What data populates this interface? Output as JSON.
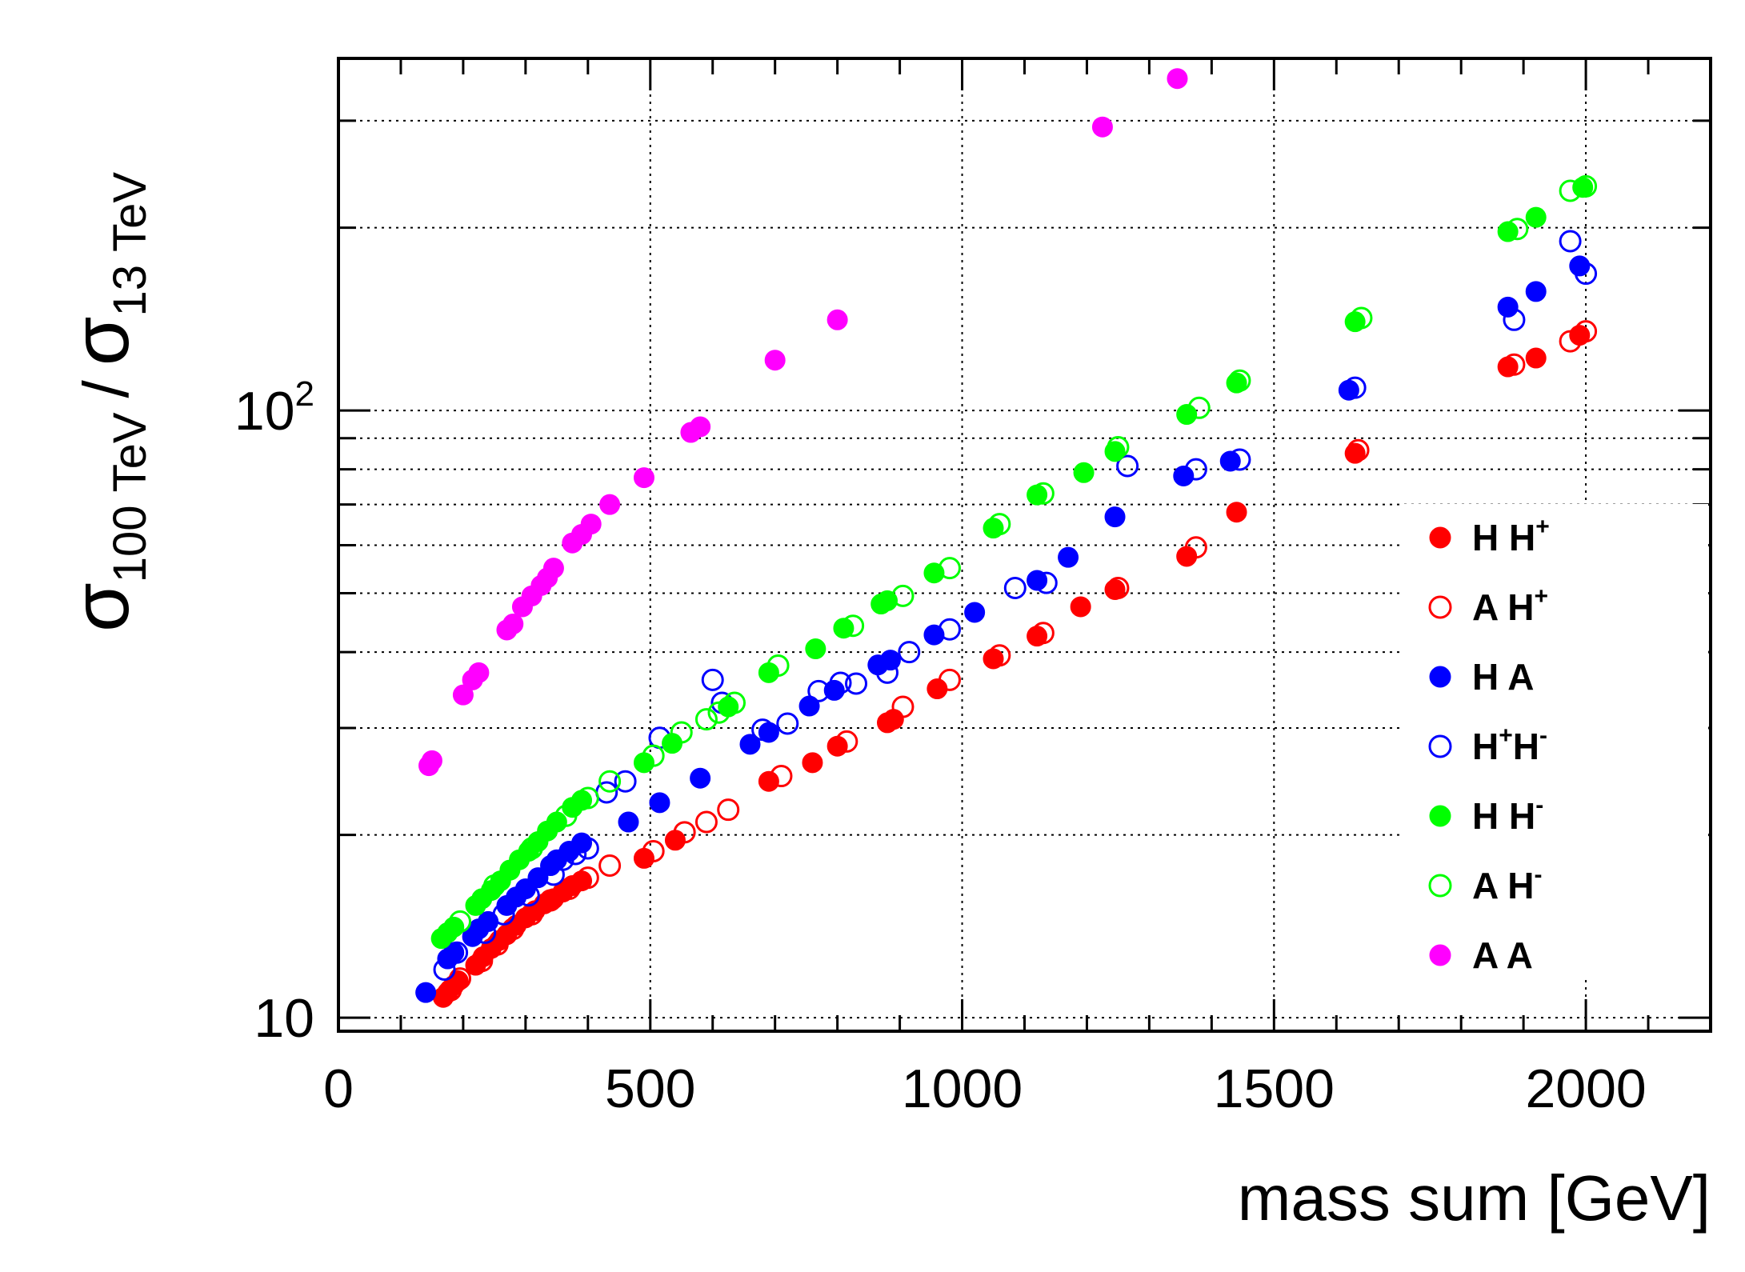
{
  "chart_data": {
    "type": "scatter",
    "title": "",
    "xlabel": "mass sum [GeV]",
    "ylabel": {
      "sigma": "σ",
      "sub_num": "100 TeV",
      "slash": "/",
      "sub_den": "13 TeV"
    },
    "xlim": [
      0,
      2200
    ],
    "ylim": [
      9.5,
      380
    ],
    "yscale": "log",
    "grid": true,
    "x_ticks": [
      {
        "value": 0,
        "label": "0"
      },
      {
        "value": 500,
        "label": "500"
      },
      {
        "value": 1000,
        "label": "1000"
      },
      {
        "value": 1500,
        "label": "1500"
      },
      {
        "value": 2000,
        "label": "2000"
      }
    ],
    "y_ticks": [
      {
        "value": 10,
        "label": "10",
        "exponent": ""
      },
      {
        "value": 100,
        "label": "10",
        "exponent": "2"
      }
    ],
    "legend_position": "right",
    "series": [
      {
        "name": "H H+",
        "label_main": "H H",
        "label_sup": "+",
        "color": "#ff0000",
        "filled": true,
        "points": [
          [
            168,
            10.8
          ],
          [
            175,
            11
          ],
          [
            185,
            11.3
          ],
          [
            192,
            11.5
          ],
          [
            220,
            12.2
          ],
          [
            232,
            12.6
          ],
          [
            245,
            13
          ],
          [
            258,
            13.4
          ],
          [
            270,
            13.7
          ],
          [
            285,
            14.2
          ],
          [
            300,
            14.6
          ],
          [
            315,
            15
          ],
          [
            330,
            15.4
          ],
          [
            345,
            15.7
          ],
          [
            360,
            16.1
          ],
          [
            375,
            16.5
          ],
          [
            390,
            16.8
          ],
          [
            490,
            18.3
          ],
          [
            540,
            19.6
          ],
          [
            690,
            24.5
          ],
          [
            760,
            26.3
          ],
          [
            800,
            28
          ],
          [
            880,
            30.6
          ],
          [
            890,
            31
          ],
          [
            960,
            34.8
          ],
          [
            1050,
            39
          ],
          [
            1120,
            42.5
          ],
          [
            1190,
            47.5
          ],
          [
            1245,
            50.7
          ],
          [
            1360,
            57.5
          ],
          [
            1440,
            68
          ],
          [
            1630,
            85
          ],
          [
            1875,
            118
          ],
          [
            1920,
            122
          ],
          [
            1990,
            133
          ]
        ]
      },
      {
        "name": "A H+",
        "label_main": "A H",
        "label_sup": "+",
        "color": "#ff0000",
        "filled": false,
        "points": [
          [
            180,
            11.1
          ],
          [
            195,
            11.6
          ],
          [
            230,
            12.4
          ],
          [
            255,
            13.2
          ],
          [
            280,
            14
          ],
          [
            310,
            14.8
          ],
          [
            340,
            15.6
          ],
          [
            370,
            16.3
          ],
          [
            400,
            17
          ],
          [
            435,
            17.8
          ],
          [
            505,
            18.8
          ],
          [
            555,
            20.2
          ],
          [
            590,
            21
          ],
          [
            625,
            22
          ],
          [
            710,
            25
          ],
          [
            815,
            28.5
          ],
          [
            905,
            32.5
          ],
          [
            980,
            36
          ],
          [
            1060,
            39.5
          ],
          [
            1130,
            43
          ],
          [
            1250,
            51
          ],
          [
            1375,
            59.5
          ],
          [
            1635,
            86
          ],
          [
            1885,
            119
          ],
          [
            1975,
            130
          ],
          [
            2000,
            135
          ]
        ]
      },
      {
        "name": "H A",
        "label_main": "H A",
        "label_sup": "",
        "color": "#0000ff",
        "filled": true,
        "points": [
          [
            140,
            11
          ],
          [
            175,
            12.5
          ],
          [
            185,
            12.8
          ],
          [
            215,
            13.6
          ],
          [
            225,
            14
          ],
          [
            240,
            14.4
          ],
          [
            270,
            15.3
          ],
          [
            285,
            15.8
          ],
          [
            300,
            16.3
          ],
          [
            320,
            17
          ],
          [
            340,
            17.8
          ],
          [
            350,
            18.2
          ],
          [
            370,
            18.8
          ],
          [
            390,
            19.4
          ],
          [
            465,
            21
          ],
          [
            515,
            22.6
          ],
          [
            580,
            24.8
          ],
          [
            660,
            28.2
          ],
          [
            690,
            29.5
          ],
          [
            755,
            32.6
          ],
          [
            795,
            34.6
          ],
          [
            865,
            38.1
          ],
          [
            885,
            38.8
          ],
          [
            955,
            42.7
          ],
          [
            1020,
            46.5
          ],
          [
            1120,
            52.5
          ],
          [
            1170,
            57.3
          ],
          [
            1245,
            66.8
          ],
          [
            1355,
            78
          ],
          [
            1430,
            82.5
          ],
          [
            1620,
            108
          ],
          [
            1875,
            148
          ],
          [
            1920,
            157
          ],
          [
            1990,
            173
          ]
        ]
      },
      {
        "name": "H+H-",
        "label_main": "H",
        "label_sup": "+",
        "label_main2": "H",
        "label_sup2": "-",
        "color": "#0000ff",
        "filled": false,
        "points": [
          [
            170,
            12
          ],
          [
            190,
            12.8
          ],
          [
            235,
            13.8
          ],
          [
            265,
            14.8
          ],
          [
            305,
            15.9
          ],
          [
            345,
            17.2
          ],
          [
            360,
            18.2
          ],
          [
            380,
            18.6
          ],
          [
            400,
            19
          ],
          [
            430,
            23.5
          ],
          [
            460,
            24.5
          ],
          [
            515,
            28.9
          ],
          [
            600,
            36
          ],
          [
            615,
            33
          ],
          [
            680,
            29.8
          ],
          [
            720,
            30.5
          ],
          [
            770,
            34.5
          ],
          [
            805,
            35.6
          ],
          [
            830,
            35.5
          ],
          [
            880,
            37
          ],
          [
            915,
            40
          ],
          [
            980,
            43.6
          ],
          [
            1085,
            51
          ],
          [
            1135,
            52
          ],
          [
            1265,
            81
          ],
          [
            1375,
            80
          ],
          [
            1445,
            83
          ],
          [
            1630,
            109
          ],
          [
            1885,
            141
          ],
          [
            1975,
            190
          ],
          [
            2000,
            168
          ]
        ]
      },
      {
        "name": "H H-",
        "label_main": "H H",
        "label_sup": "-",
        "color": "#00ff00",
        "filled": true,
        "points": [
          [
            165,
            13.5
          ],
          [
            175,
            13.8
          ],
          [
            185,
            14.1
          ],
          [
            220,
            15.3
          ],
          [
            230,
            15.7
          ],
          [
            245,
            16.2
          ],
          [
            260,
            16.8
          ],
          [
            275,
            17.5
          ],
          [
            290,
            18.2
          ],
          [
            305,
            18.8
          ],
          [
            320,
            19.5
          ],
          [
            335,
            20.3
          ],
          [
            350,
            21
          ],
          [
            375,
            22.2
          ],
          [
            390,
            22.8
          ],
          [
            490,
            26.3
          ],
          [
            535,
            28.3
          ],
          [
            625,
            32.5
          ],
          [
            690,
            37
          ],
          [
            765,
            40.5
          ],
          [
            810,
            43.8
          ],
          [
            870,
            48
          ],
          [
            880,
            48.6
          ],
          [
            955,
            54
          ],
          [
            1050,
            64
          ],
          [
            1120,
            72.6
          ],
          [
            1195,
            79
          ],
          [
            1245,
            85.6
          ],
          [
            1360,
            98.5
          ],
          [
            1440,
            111
          ],
          [
            1630,
            140
          ],
          [
            1875,
            197
          ],
          [
            1920,
            208
          ],
          [
            1995,
            233
          ]
        ]
      },
      {
        "name": "A H-",
        "label_main": "A H",
        "label_sup": "-",
        "color": "#00ff00",
        "filled": false,
        "points": [
          [
            195,
            14.4
          ],
          [
            250,
            16.5
          ],
          [
            310,
            19
          ],
          [
            365,
            21.5
          ],
          [
            400,
            23
          ],
          [
            435,
            24.5
          ],
          [
            505,
            27
          ],
          [
            550,
            29.5
          ],
          [
            590,
            31
          ],
          [
            610,
            31.8
          ],
          [
            635,
            33
          ],
          [
            705,
            38
          ],
          [
            825,
            44.2
          ],
          [
            905,
            49.5
          ],
          [
            980,
            55
          ],
          [
            1060,
            65
          ],
          [
            1130,
            73
          ],
          [
            1250,
            87
          ],
          [
            1380,
            101
          ],
          [
            1445,
            112
          ],
          [
            1640,
            142
          ],
          [
            1890,
            199
          ],
          [
            1975,
            230
          ],
          [
            2000,
            234
          ]
        ]
      },
      {
        "name": "A A",
        "label_main": "A A",
        "label_sup": "",
        "color": "#ff00ff",
        "filled": true,
        "points": [
          [
            145,
            26
          ],
          [
            150,
            26.5
          ],
          [
            200,
            34
          ],
          [
            215,
            36
          ],
          [
            225,
            37
          ],
          [
            270,
            43.5
          ],
          [
            280,
            44.5
          ],
          [
            295,
            47.5
          ],
          [
            310,
            49.5
          ],
          [
            325,
            51.5
          ],
          [
            335,
            53
          ],
          [
            345,
            55
          ],
          [
            375,
            60.5
          ],
          [
            390,
            62.5
          ],
          [
            405,
            65
          ],
          [
            435,
            70
          ],
          [
            490,
            77.5
          ],
          [
            565,
            92
          ],
          [
            580,
            94
          ],
          [
            700,
            121
          ],
          [
            800,
            141
          ],
          [
            1225,
            293
          ],
          [
            1345,
            352
          ]
        ]
      }
    ]
  }
}
